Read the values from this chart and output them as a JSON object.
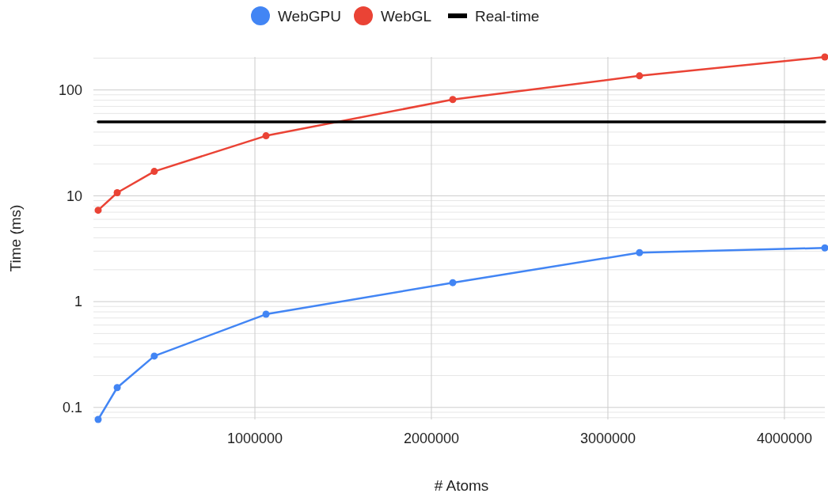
{
  "chart_data": {
    "type": "line",
    "xlabel": "# Atoms",
    "ylabel": "Time (ms)",
    "log": "y",
    "grid": true,
    "legend": "top",
    "marker": "circle",
    "line_style": "solid",
    "xlim": [
      112000,
      4229000
    ],
    "xticks": [
      1000000,
      2000000,
      3000000,
      4000000
    ],
    "ylim": [
      0.077,
      205
    ],
    "yticks": [
      0.1,
      1,
      10,
      100
    ],
    "x": [
      112000,
      220000,
      430000,
      1063000,
      2121000,
      3179000,
      4229000
    ],
    "series": [
      {
        "name": "WebGPU",
        "color": "#4285f4",
        "values": [
          0.077,
          0.154,
          0.306,
          0.76,
          1.51,
          2.9,
          3.22
        ]
      },
      {
        "name": "WebGL",
        "color": "#ea4335",
        "values": [
          7.3,
          10.7,
          17,
          36.9,
          81.3,
          136,
          205
        ]
      },
      {
        "name": "Real-time",
        "color": "#000000",
        "x": [
          112000,
          4229000
        ],
        "values": [
          50,
          50
        ],
        "marker": "none"
      }
    ]
  }
}
